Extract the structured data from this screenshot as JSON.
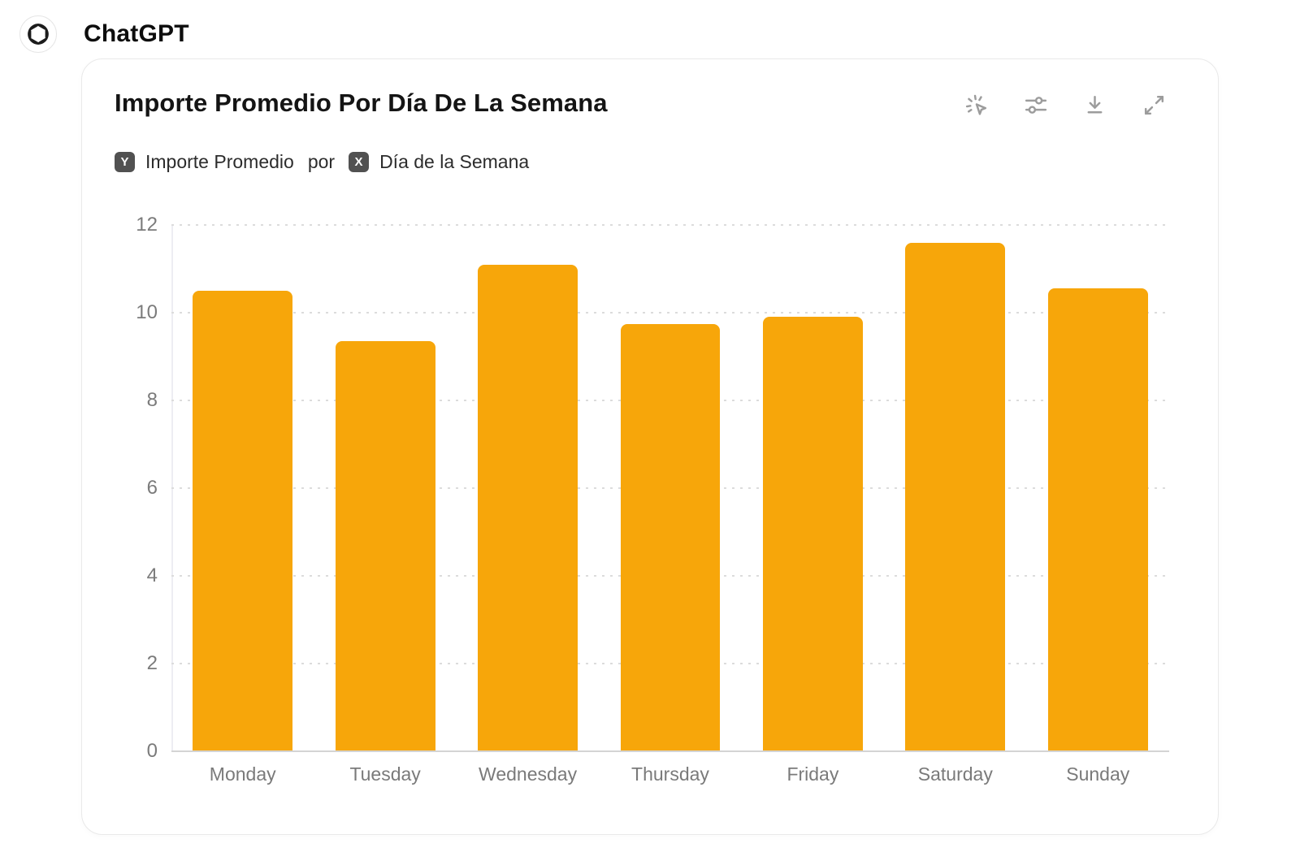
{
  "header": {
    "app_name": "ChatGPT"
  },
  "card": {
    "title": "Importe Promedio Por Día De La Semana",
    "axis_mapping": {
      "y_badge": "Y",
      "y_label": "Importe Promedio",
      "separator": "por",
      "x_badge": "X",
      "x_label": "Día de la Semana"
    },
    "toolbar": [
      {
        "name": "interactive-chart",
        "icon": "sparkle-cursor-icon"
      },
      {
        "name": "chart-settings",
        "icon": "sliders-icon"
      },
      {
        "name": "download",
        "icon": "download-icon"
      },
      {
        "name": "expand",
        "icon": "expand-icon"
      }
    ]
  },
  "chart_data": {
    "type": "bar",
    "title": "Importe Promedio Por Día De La Semana",
    "categories": [
      "Monday",
      "Tuesday",
      "Wednesday",
      "Thursday",
      "Friday",
      "Saturday",
      "Sunday"
    ],
    "values": [
      10.5,
      9.35,
      11.1,
      9.75,
      9.9,
      11.6,
      10.55
    ],
    "xlabel": "Día de la Semana",
    "ylabel": "Importe Promedio",
    "ylim": [
      0,
      12
    ],
    "yticks": [
      0,
      2,
      4,
      6,
      8,
      10,
      12
    ],
    "grid": "horizontal-dashed",
    "legend": "none",
    "bar_color": "#F7A60A"
  },
  "colors": {
    "bar": "#F7A60A",
    "axis_text": "#7b7b7b",
    "grid": "#dcdcdc",
    "baseline": "#d4d4d4",
    "title": "#141414",
    "badge_bg": "#515151",
    "icon": "#9c9c9c",
    "card_border": "#e9e9e9"
  }
}
